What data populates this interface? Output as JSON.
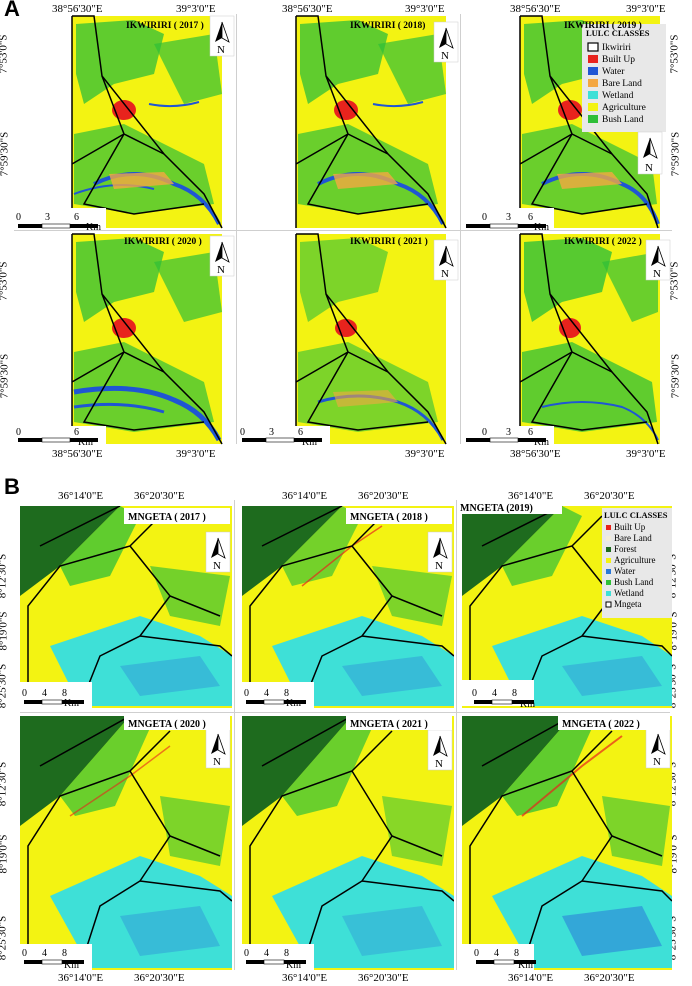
{
  "sections": {
    "a": {
      "letter": "A",
      "lon_labels": [
        "38°56'30\"E",
        "39°3'0\"E"
      ],
      "lat_labels": [
        "7°53'0\"S",
        "7°59'30\"S"
      ],
      "panels": [
        {
          "title": "IKWIRIRI ( 2017 )"
        },
        {
          "title": "IKWIRIRI ( 2018)"
        },
        {
          "title": "IKWIRIRI ( 2019 )"
        },
        {
          "title": "IKWIRIRI ( 2020 )"
        },
        {
          "title": "IKWIRIRI ( 2021 )"
        },
        {
          "title": "IKWIRIRI ( 2022 )"
        }
      ],
      "scale": {
        "ticks": [
          "0",
          "3",
          "6"
        ],
        "unit": "Km"
      },
      "north": "N",
      "legend": {
        "title": "LULC CLASSES",
        "items": [
          {
            "label": "Ikwiriri",
            "color": "#ffffff",
            "outline": true
          },
          {
            "label": "Built Up",
            "color": "#e8231d"
          },
          {
            "label": "Water",
            "color": "#1f56d4"
          },
          {
            "label": "Bare Land",
            "color": "#f4a742"
          },
          {
            "label": "Wetland",
            "color": "#3ee0d7"
          },
          {
            "label": "Agriculture",
            "color": "#f3f312"
          },
          {
            "label": "Bush Land",
            "color": "#2fbf38"
          }
        ]
      }
    },
    "b": {
      "letter": "B",
      "lon_labels": [
        "36°14'0\"E",
        "36°20'30\"E"
      ],
      "lat_labels": [
        "8°12'30\"S",
        "8°19'0\"S",
        "8°25'30\"S"
      ],
      "panels": [
        {
          "title": "MNGETA ( 2017 )"
        },
        {
          "title": "MNGETA ( 2018 )"
        },
        {
          "title": "MNGETA (2019)"
        },
        {
          "title": "MNGETA ( 2020 )"
        },
        {
          "title": "MNGETA ( 2021 )"
        },
        {
          "title": "MNGETA ( 2022 )"
        }
      ],
      "scale": {
        "ticks": [
          "0",
          "4",
          "8"
        ],
        "unit": "Km"
      },
      "north": "N",
      "legend": {
        "title": "LULC CLASSES",
        "items": [
          {
            "label": "Built Up",
            "color": "#e8231d"
          },
          {
            "label": "Bare Land",
            "color": "#f2ecd8"
          },
          {
            "label": "Forest",
            "color": "#1e6b1e"
          },
          {
            "label": "Agriculture",
            "color": "#f3f312"
          },
          {
            "label": "Water",
            "color": "#2a78d8"
          },
          {
            "label": "Bush Land",
            "color": "#2fbf38"
          },
          {
            "label": "Wetland",
            "color": "#3ee0d7"
          },
          {
            "label": "Mngeta",
            "color": "#ffffff",
            "outline": true
          }
        ]
      }
    }
  }
}
